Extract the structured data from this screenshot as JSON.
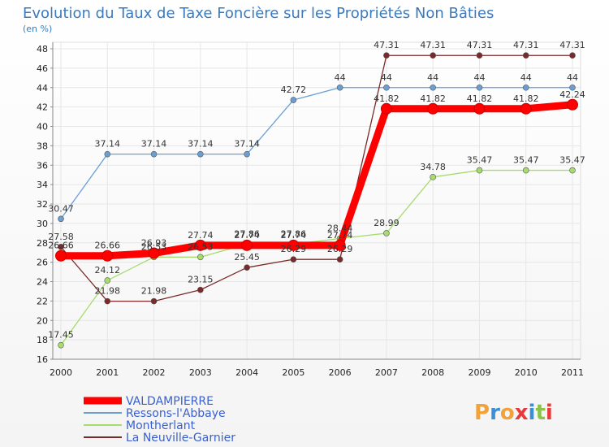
{
  "chart_data": {
    "type": "line",
    "title": "Evolution du Taux de Taxe Foncière sur les Propriétés Non Bâties",
    "subtitle": "(en %)",
    "x": [
      "2000",
      "2001",
      "2002",
      "2003",
      "2004",
      "2005",
      "2006",
      "2007",
      "2008",
      "2009",
      "2010",
      "2011"
    ],
    "ylim": [
      16,
      48
    ],
    "yticks": [
      16,
      18,
      20,
      22,
      24,
      26,
      28,
      30,
      32,
      34,
      36,
      38,
      40,
      42,
      44,
      46,
      48
    ],
    "grid": true,
    "legend_position": "bottom-left",
    "series": [
      {
        "name": "VALDAMPIERRE",
        "color": "#ff0000",
        "values": [
          26.66,
          26.66,
          26.93,
          27.74,
          27.74,
          27.74,
          27.74,
          41.82,
          41.82,
          41.82,
          41.82,
          42.24
        ],
        "labels": [
          "26.66",
          "26.66",
          "26.93",
          "27.74",
          "27.74",
          "27.74",
          "27.74",
          "41.82",
          "41.82",
          "41.82",
          "41.82",
          "42.24"
        ]
      },
      {
        "name": "Ressons-l'Abbaye",
        "color": "#6a9fd4",
        "values": [
          30.47,
          37.14,
          37.14,
          37.14,
          37.14,
          42.72,
          44,
          44,
          44,
          44,
          44,
          44
        ],
        "labels": [
          "30.47",
          "37.14",
          "37.14",
          "37.14",
          "37.14",
          "42.72",
          "44",
          "44",
          "44",
          "44",
          "44",
          "44"
        ]
      },
      {
        "name": "Montherlant",
        "color": "#a6dc6e",
        "values": [
          17.45,
          24.12,
          26.53,
          26.53,
          27.86,
          27.86,
          28.44,
          28.99,
          34.78,
          35.47,
          35.47,
          35.47
        ],
        "labels": [
          "17.45",
          "24.12",
          "26.53",
          "26.53",
          "27.86",
          "27.86",
          "28.44",
          "28.99",
          "34.78",
          "35.47",
          "35.47",
          "35.47"
        ]
      },
      {
        "name": "La Neuville-Garnier",
        "color": "#7a2a2a",
        "values": [
          27.58,
          21.98,
          21.98,
          23.15,
          25.45,
          26.29,
          26.29,
          47.31,
          47.31,
          47.31,
          47.31,
          47.31
        ],
        "labels": [
          "27.58",
          "21.98",
          "21.98",
          "23.15",
          "25.45",
          "26.29",
          "26.29",
          "47.31",
          "47.31",
          "47.31",
          "47.31",
          "47.31"
        ]
      }
    ]
  },
  "logo": {
    "text": "Proxiti"
  }
}
